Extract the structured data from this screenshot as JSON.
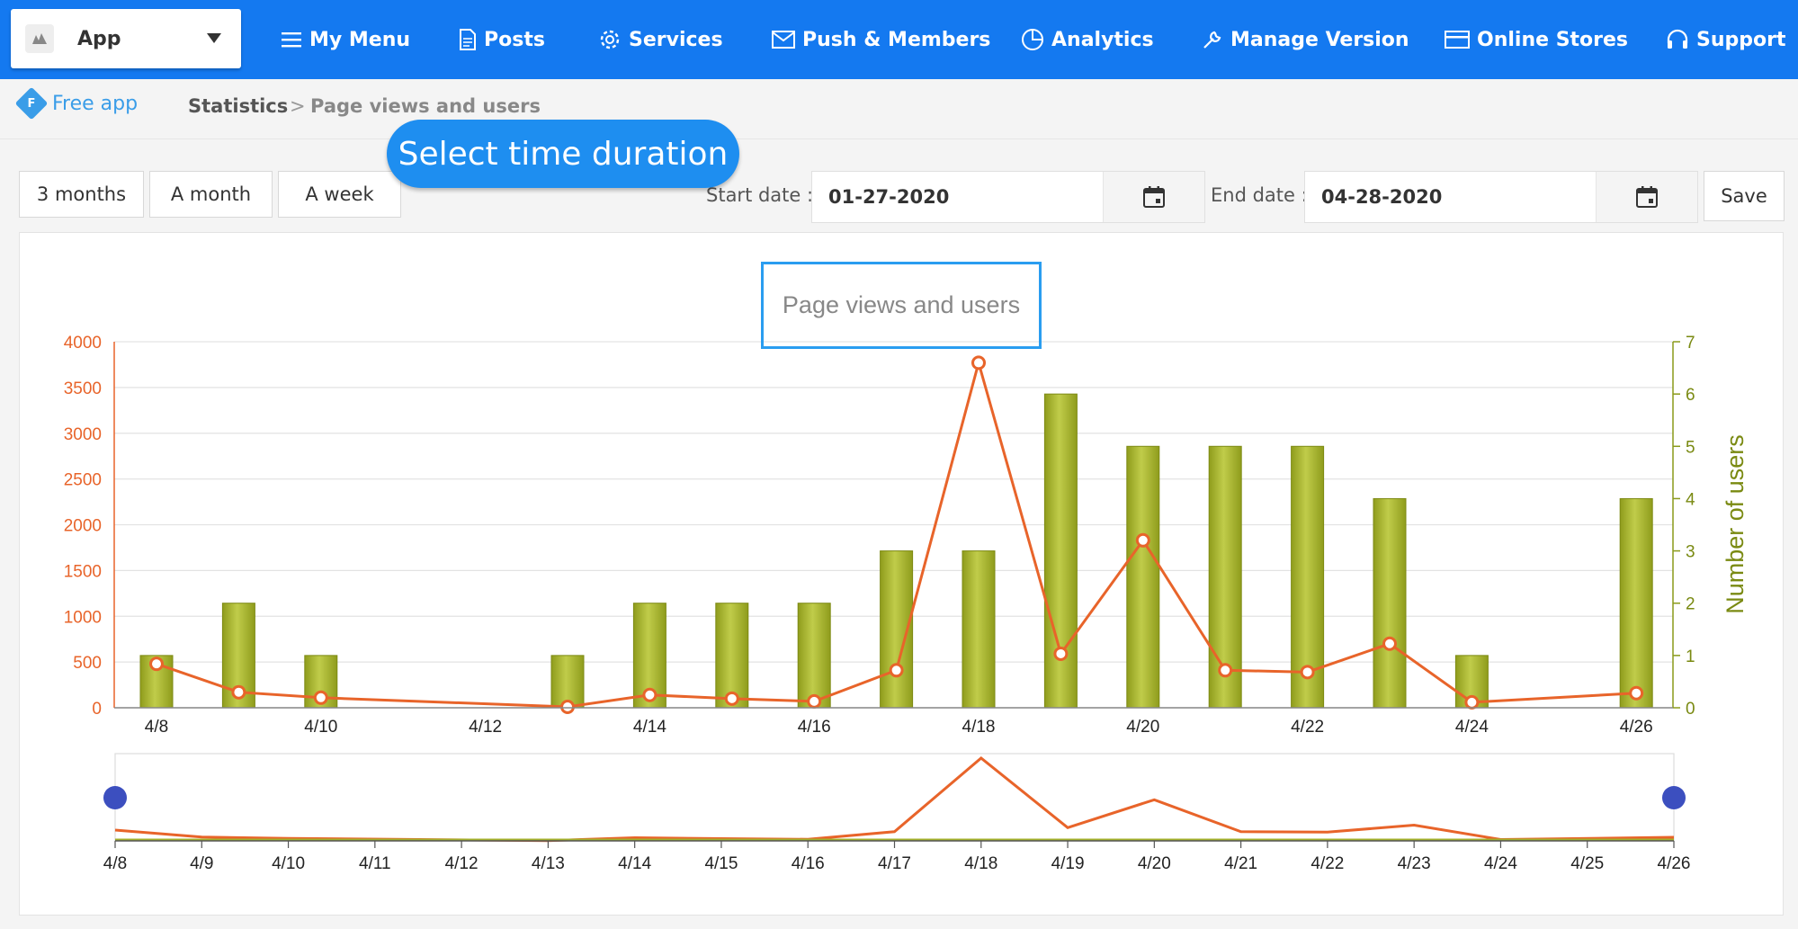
{
  "nav": {
    "app_select": {
      "label": "App"
    },
    "items": [
      {
        "label": "My Menu",
        "icon": "hamburger-icon"
      },
      {
        "label": "Posts",
        "icon": "document-icon"
      },
      {
        "label": "Services",
        "icon": "gear-icon"
      },
      {
        "label": "Push & Members",
        "icon": "envelope-icon"
      },
      {
        "label": "Analytics",
        "icon": "pie-chart-icon"
      },
      {
        "label": "Manage Version",
        "icon": "wrench-icon"
      },
      {
        "label": "Online Stores",
        "icon": "card-icon"
      },
      {
        "label": "Support",
        "icon": "headset-icon"
      }
    ]
  },
  "breadcrumb": {
    "plan": "Free app",
    "plan_badge": "F",
    "section": "Statistics",
    "separator": ">",
    "page": "Page views and users"
  },
  "tooltip": "Select time duration",
  "toolbar": {
    "ranges": [
      "3 months",
      "A month",
      "A week"
    ],
    "start_label": "Start date :",
    "start_value": "01-27-2020",
    "end_label": "End date :",
    "end_value": "04-28-2020",
    "save_label": "Save"
  },
  "colors": {
    "brand": "#1479f0",
    "line": "#e8642a",
    "bar": "#a4b12c",
    "handle": "#3c4fbf"
  },
  "chart_data": {
    "type": "bar",
    "title": "Page views and users",
    "x": [
      "4/8",
      "4/9",
      "4/10",
      "4/11",
      "4/12",
      "4/13",
      "4/14",
      "4/15",
      "4/16",
      "4/17",
      "4/18",
      "4/19",
      "4/20",
      "4/21",
      "4/22",
      "4/23",
      "4/24",
      "4/25",
      "4/26"
    ],
    "x_tick_labels": [
      "4/8",
      "4/10",
      "4/12",
      "4/14",
      "4/16",
      "4/18",
      "4/20",
      "4/22",
      "4/24",
      "4/26"
    ],
    "series": [
      {
        "type": "bar",
        "axis": "right",
        "values": [
          1,
          2,
          1,
          null,
          null,
          1,
          2,
          2,
          2,
          3,
          3,
          6,
          5,
          5,
          5,
          4,
          1,
          null,
          4
        ]
      },
      {
        "type": "line",
        "axis": "left",
        "values": [
          480,
          170,
          110,
          null,
          null,
          10,
          140,
          100,
          70,
          410,
          3770,
          590,
          1830,
          410,
          390,
          700,
          60,
          null,
          160
        ]
      }
    ],
    "y_left": {
      "ticks": [
        "0",
        "500",
        "1000",
        "1500",
        "2000",
        "2500",
        "3000",
        "3500",
        "4000"
      ],
      "lim": [
        0,
        4000
      ]
    },
    "y_right": {
      "label": "Number of users",
      "ticks": [
        "0",
        "1",
        "2",
        "3",
        "4",
        "5",
        "6",
        "7"
      ],
      "lim": [
        0,
        7
      ]
    },
    "grid": true,
    "navigator": {
      "x_tick_labels": [
        "4/8",
        "4/9",
        "4/10",
        "4/11",
        "4/12",
        "4/13",
        "4/14",
        "4/15",
        "4/16",
        "4/17",
        "4/18",
        "4/19",
        "4/20",
        "4/21",
        "4/22",
        "4/23",
        "4/24",
        "4/25",
        "4/26"
      ]
    }
  }
}
